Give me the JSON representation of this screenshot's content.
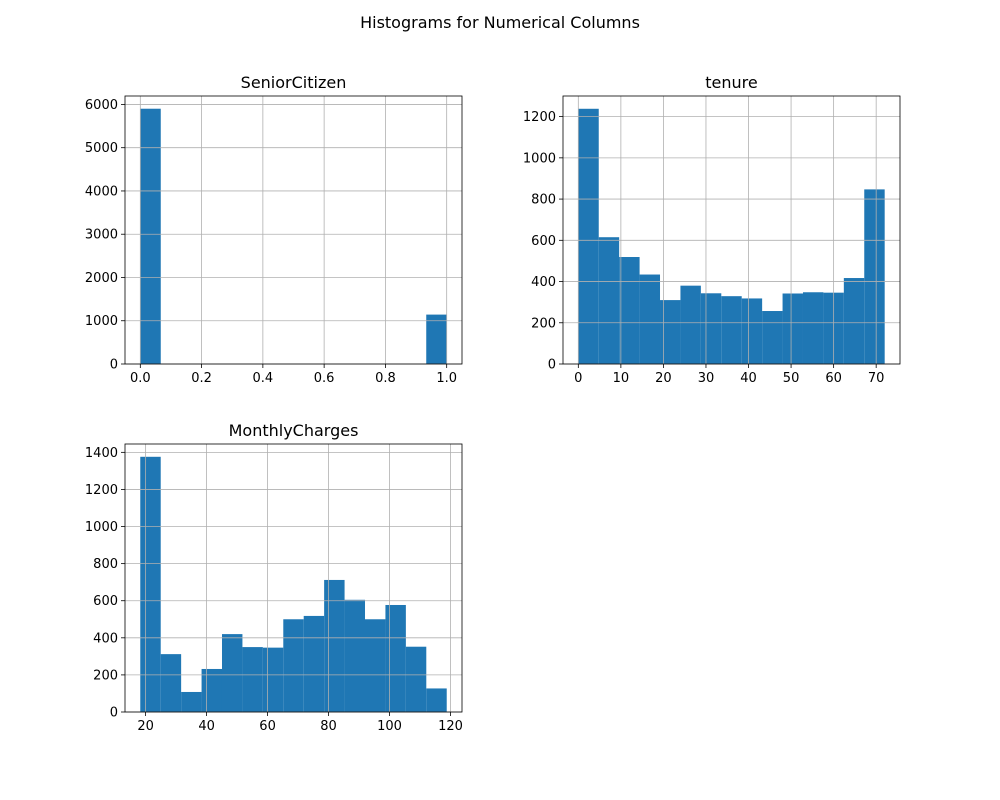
{
  "figure": {
    "suptitle": "Histograms for Numerical Columns"
  },
  "style": {
    "bar_color": "#1f77b4",
    "grid_color": "#b0b0b0",
    "axis_color": "#000000",
    "background": "#ffffff"
  },
  "chart_data": [
    {
      "type": "bar",
      "title": "SeniorCitizen",
      "xlabel": "",
      "ylabel": "",
      "grid": true,
      "xlim": [
        -0.05,
        1.05
      ],
      "ylim": [
        0,
        6195
      ],
      "xticks": [
        0.0,
        0.2,
        0.4,
        0.6,
        0.8,
        1.0
      ],
      "xtick_labels": [
        "0.0",
        "0.2",
        "0.4",
        "0.6",
        "0.8",
        "1.0"
      ],
      "yticks": [
        0,
        1000,
        2000,
        3000,
        4000,
        5000,
        6000
      ],
      "ytick_labels": [
        "0",
        "1000",
        "2000",
        "3000",
        "4000",
        "5000",
        "6000"
      ],
      "bin_edges": [
        0.0,
        0.0667,
        0.1333,
        0.2,
        0.2667,
        0.3333,
        0.4,
        0.4667,
        0.5333,
        0.6,
        0.6667,
        0.7333,
        0.8,
        0.8667,
        0.9333,
        1.0
      ],
      "values": [
        5901,
        0,
        0,
        0,
        0,
        0,
        0,
        0,
        0,
        0,
        0,
        0,
        0,
        0,
        1142
      ]
    },
    {
      "type": "bar",
      "title": "tenure",
      "xlabel": "",
      "ylabel": "",
      "grid": true,
      "xlim": [
        -3.6,
        75.6
      ],
      "ylim": [
        0,
        1300
      ],
      "xticks": [
        0,
        10,
        20,
        30,
        40,
        50,
        60,
        70
      ],
      "xtick_labels": [
        "0",
        "10",
        "20",
        "30",
        "40",
        "50",
        "60",
        "70"
      ],
      "yticks": [
        0,
        200,
        400,
        600,
        800,
        1000,
        1200
      ],
      "ytick_labels": [
        "0",
        "200",
        "400",
        "600",
        "800",
        "1000",
        "1200"
      ],
      "bin_edges": [
        0,
        4.8,
        9.6,
        14.4,
        19.2,
        24,
        28.8,
        33.6,
        38.4,
        43.2,
        48,
        52.8,
        57.6,
        62.4,
        67.2,
        72
      ],
      "values": [
        1238,
        615,
        519,
        434,
        310,
        380,
        343,
        329,
        318,
        257,
        342,
        348,
        346,
        417,
        847
      ]
    },
    {
      "type": "bar",
      "title": "MonthlyCharges",
      "xlabel": "",
      "ylabel": "",
      "grid": true,
      "xlim": [
        13.24,
        123.76
      ],
      "ylim": [
        0,
        1445
      ],
      "xticks": [
        20,
        40,
        60,
        80,
        100,
        120
      ],
      "xtick_labels": [
        "20",
        "40",
        "60",
        "80",
        "100",
        "120"
      ],
      "yticks": [
        0,
        200,
        400,
        600,
        800,
        1000,
        1200,
        1400
      ],
      "ytick_labels": [
        "0",
        "200",
        "400",
        "600",
        "800",
        "1000",
        "1200",
        "1400"
      ],
      "bin_edges": [
        18.25,
        24.95,
        31.65,
        38.35,
        45.05,
        51.75,
        58.45,
        65.15,
        71.85,
        78.55,
        85.25,
        91.95,
        98.65,
        105.35,
        112.05,
        118.75
      ],
      "values": [
        1376,
        312,
        108,
        232,
        420,
        350,
        347,
        500,
        518,
        712,
        605,
        500,
        577,
        352,
        127
      ]
    }
  ]
}
